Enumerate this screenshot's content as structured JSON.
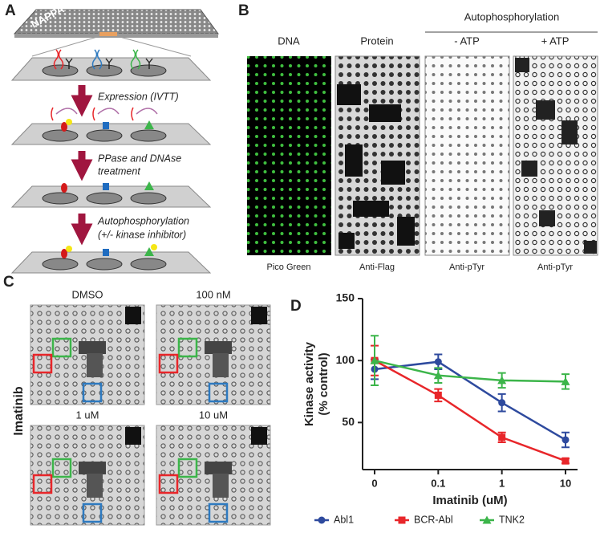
{
  "panel_a": {
    "label": "A",
    "array_label": "NAPPA",
    "steps": [
      [
        "Expression (IVTT)"
      ],
      [
        "PPase and DNAse",
        "treatment"
      ],
      [
        "Autophosphorylation",
        "(+/- kinase inhibitor)"
      ]
    ]
  },
  "panel_b": {
    "label": "B",
    "group_title": "Autophosphorylation",
    "images": [
      {
        "title": "DNA",
        "caption": "Pico Green"
      },
      {
        "title": "Protein",
        "caption": "Anti-Flag"
      },
      {
        "title": "- ATP",
        "caption": "Anti-pTyr"
      },
      {
        "title": "+ ATP",
        "caption": "Anti-pTyr"
      }
    ]
  },
  "panel_c": {
    "label": "C",
    "y_label": "Imatinib",
    "images": [
      "DMSO",
      "100 nM",
      "1 uM",
      "10 uM"
    ]
  },
  "chart_data": {
    "label": "D",
    "type": "line",
    "x_label": "Imatinib (uM)",
    "y_label": [
      "Kinase activity",
      "(% control)"
    ],
    "categories": [
      "0",
      "0.1",
      "1",
      "10"
    ],
    "series": [
      {
        "name": "Abl1",
        "color": "#2e4a9e",
        "marker": "circle",
        "values": [
          93,
          99,
          66,
          36
        ],
        "errors": [
          8,
          6,
          7,
          6
        ]
      },
      {
        "name": "BCR-Abl",
        "color": "#e8262a",
        "marker": "square",
        "values": [
          100,
          72,
          38,
          19
        ],
        "errors": [
          12,
          5,
          4,
          2
        ]
      },
      {
        "name": "TNK2",
        "color": "#3cb54a",
        "marker": "triangle",
        "values": [
          100,
          88,
          84,
          83
        ],
        "errors": [
          20,
          6,
          6,
          6
        ]
      }
    ],
    "ylim": [
      12,
      150
    ],
    "yticks": [
      50,
      100,
      150
    ],
    "grid": false,
    "error_bars": true,
    "legend": "bottom"
  }
}
